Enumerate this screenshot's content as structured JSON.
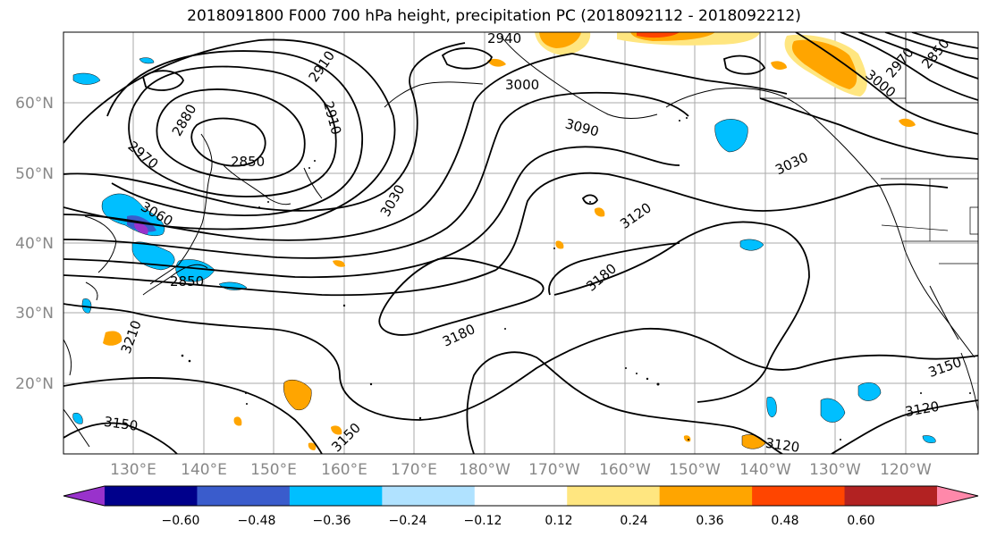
{
  "title": "2018091800 F000 700 hPa height, precipitation PC (2018092112 - 2018092212)",
  "lat_labels": [
    "60°N",
    "50°N",
    "40°N",
    "30°N",
    "20°N"
  ],
  "lon_labels": [
    "130°E",
    "140°E",
    "150°E",
    "160°E",
    "170°E",
    "180°W",
    "170°W",
    "160°W",
    "150°W",
    "140°W",
    "130°W",
    "120°W"
  ],
  "contour_labels": [
    "2910",
    "2940",
    "3000",
    "2850",
    "2880",
    "2910",
    "2850",
    "2970",
    "3030",
    "3060",
    "3090",
    "3030",
    "3120",
    "3180",
    "3180",
    "3210",
    "3150",
    "3150",
    "3150",
    "3120",
    "3120",
    "3000",
    "2970",
    "2850"
  ],
  "colorbar": {
    "ticks": [
      "−0.60",
      "−0.48",
      "−0.36",
      "−0.24",
      "−0.12",
      "0.12",
      "0.24",
      "0.36",
      "0.48",
      "0.60"
    ],
    "colors": [
      "#9932cc",
      "#00008b",
      "#3a5ccc",
      "#00bfff",
      "#b0e2ff",
      "#ffffff",
      "#ffe680",
      "#ffa500",
      "#ff4500",
      "#b22222",
      "#ff88aa"
    ]
  },
  "colors": {
    "blue_light": "#00bfff",
    "blue_pale": "#b0e2ff",
    "blue_mid": "#3a5ccc",
    "purple": "#9932cc",
    "orange": "#ffa500",
    "yellow": "#ffe680",
    "red": "#ff4500"
  }
}
